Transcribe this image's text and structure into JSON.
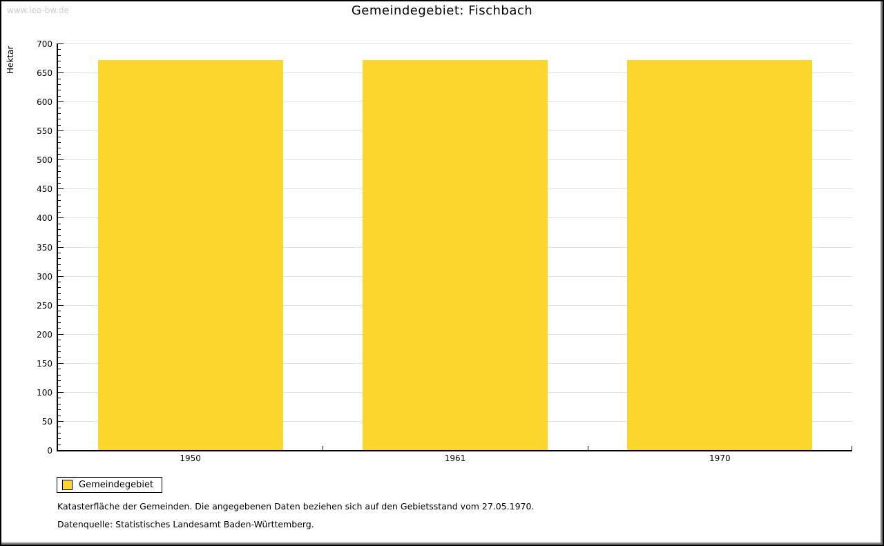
{
  "watermark": "www.leo-bw.de",
  "title": "Gemeindegebiet: Fischbach",
  "chart_data": {
    "type": "bar",
    "title": "Gemeindegebiet: Fischbach",
    "xlabel": "",
    "ylabel": "Hektar",
    "categories": [
      "1950",
      "1961",
      "1970"
    ],
    "series": [
      {
        "name": "Gemeindegebiet",
        "values": [
          672,
          672,
          672
        ],
        "color": "#FCD62D"
      }
    ],
    "ylim": [
      0,
      700
    ],
    "ytick_major": 50,
    "ytick_minor": 10,
    "grid": true,
    "gridline_color": "#e0e0e0",
    "legend_position": "bottom-left"
  },
  "legend": {
    "label": "Gemeindegebiet",
    "swatch_color": "#FCD62D"
  },
  "footnotes": [
    "Katasterfläche der Gemeinden. Die angegebenen Daten beziehen sich auf den Gebietsstand vom 27.05.1970.",
    "Datenquelle: Statistisches Landesamt Baden-Württemberg."
  ],
  "colors": {
    "bar": "#FCD62D",
    "axis": "#000000",
    "gridline": "#e0e0e0",
    "watermark": "#cccccc",
    "frame_border": "#000000",
    "frame_shadow": "#808080"
  }
}
